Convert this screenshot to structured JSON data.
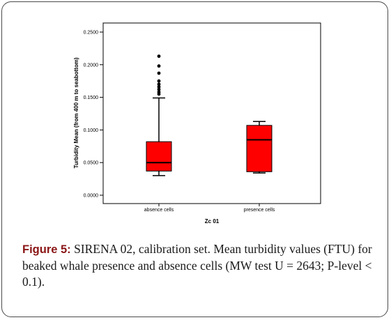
{
  "chart_data": {
    "type": "box",
    "xlabel": "Zc 01",
    "ylabel": "Turbidity Mean (from 400 m to seabottom)",
    "ylim": [
      0,
      0.26
    ],
    "yticks": [
      0.0,
      0.05,
      0.1,
      0.15,
      0.2,
      0.25
    ],
    "ytick_labels": [
      "0.0000",
      "0.0500",
      "0.1000",
      "0.1500",
      "0.2000",
      "0.2500"
    ],
    "grid": false,
    "box_color": "#ff0000",
    "categories": [
      "absence cells",
      "presence cells"
    ],
    "boxes": [
      {
        "category": "absence cells",
        "min": 0.03,
        "q1": 0.037,
        "median": 0.05,
        "q3": 0.082,
        "max": 0.149,
        "outliers": [
          0.155,
          0.158,
          0.162,
          0.166,
          0.17,
          0.175,
          0.187,
          0.198,
          0.213
        ]
      },
      {
        "category": "presence cells",
        "min": 0.034,
        "q1": 0.036,
        "median": 0.085,
        "q3": 0.107,
        "max": 0.113,
        "outliers": []
      }
    ]
  },
  "caption": {
    "label": "Figure 5:",
    "text": " SIRENA 02, calibration set. Mean turbidity values (FTU) for beaked whale presence and absence cells (MW test U = 2643; P-level < 0.1)."
  }
}
